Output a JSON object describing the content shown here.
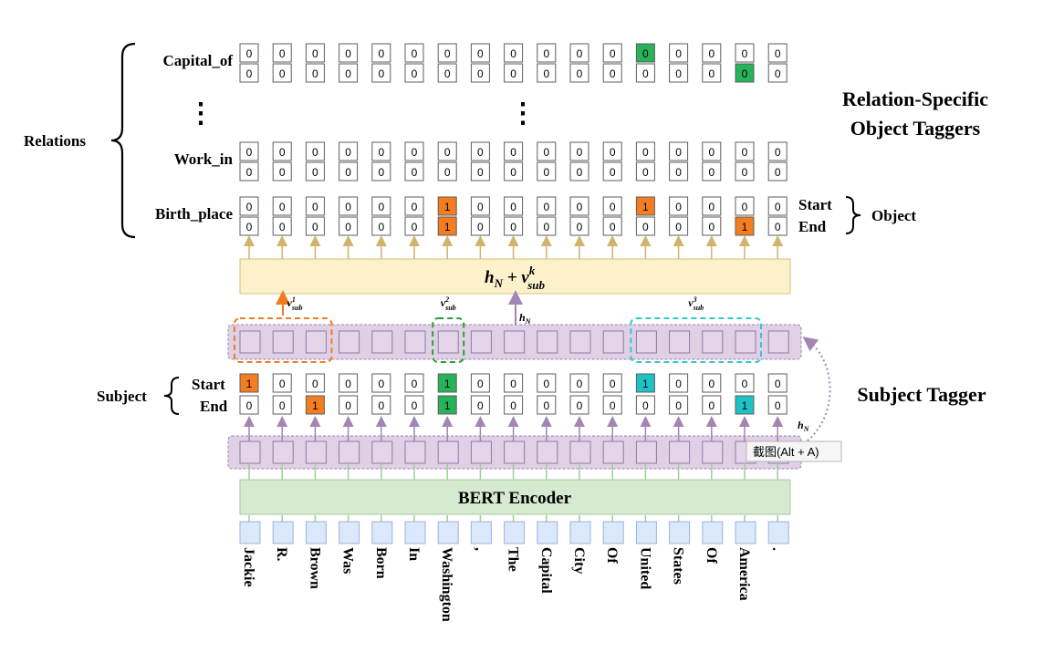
{
  "tokens": [
    "Jackie",
    "R.",
    "Brown",
    "Was",
    "Born",
    "In",
    "Washington",
    ",",
    "The",
    "Capital",
    "City",
    "Of",
    "United",
    "States",
    "Of",
    "America",
    "."
  ],
  "encoder_label": "BERT Encoder",
  "sum_label": {
    "main": "h",
    "sub_n": "N",
    "plus": " + v",
    "sup": "k",
    "sub": "sub"
  },
  "subject_tagger": {
    "title": "Subject Tagger",
    "group_label": "Subject",
    "start_label": "Start",
    "end_label": "End",
    "start": [
      "1",
      "0",
      "0",
      "0",
      "0",
      "0",
      "1",
      "0",
      "0",
      "0",
      "0",
      "0",
      "1",
      "0",
      "0",
      "0",
      "0"
    ],
    "end": [
      "0",
      "0",
      "1",
      "0",
      "0",
      "0",
      "1",
      "0",
      "0",
      "0",
      "0",
      "0",
      "0",
      "0",
      "0",
      "1",
      "0"
    ]
  },
  "subject_spans": [
    {
      "label_main": "v",
      "sup": "1",
      "sub": "sub",
      "color": "#f07b22",
      "from": 0,
      "to": 2
    },
    {
      "label_main": "v",
      "sup": "2",
      "sub": "sub",
      "color": "#2a9d3a",
      "from": 6,
      "to": 6
    },
    {
      "label_main": "v",
      "sup": "3",
      "sub": "sub",
      "color": "#35c7c9",
      "from": 12,
      "to": 15
    }
  ],
  "hn_label": {
    "main": "h",
    "sub": "N"
  },
  "object_taggers": {
    "title_line1": "Relation-Specific",
    "title_line2": "Object Taggers",
    "relations_label": "Relations",
    "start_label": "Start",
    "end_label": "End",
    "object_label": "Object",
    "ellipsis": "⋮",
    "relations": [
      {
        "name": "Capital_of",
        "start": [
          "0",
          "0",
          "0",
          "0",
          "0",
          "0",
          "0",
          "0",
          "0",
          "0",
          "0",
          "0",
          "0",
          "0",
          "0",
          "0",
          "0"
        ],
        "end": [
          "0",
          "0",
          "0",
          "0",
          "0",
          "0",
          "0",
          "0",
          "0",
          "0",
          "0",
          "0",
          "0",
          "0",
          "0",
          "0",
          "0"
        ],
        "start_hl": [
          12
        ],
        "end_hl": [
          15
        ]
      },
      {
        "name": "Work_in",
        "start": [
          "0",
          "0",
          "0",
          "0",
          "0",
          "0",
          "0",
          "0",
          "0",
          "0",
          "0",
          "0",
          "0",
          "0",
          "0",
          "0",
          "0"
        ],
        "end": [
          "0",
          "0",
          "0",
          "0",
          "0",
          "0",
          "0",
          "0",
          "0",
          "0",
          "0",
          "0",
          "0",
          "0",
          "0",
          "0",
          "0"
        ],
        "start_hl": [],
        "end_hl": []
      },
      {
        "name": "Birth_place",
        "start": [
          "0",
          "0",
          "0",
          "0",
          "0",
          "0",
          "1",
          "0",
          "0",
          "0",
          "0",
          "0",
          "1",
          "0",
          "0",
          "0",
          "0"
        ],
        "end": [
          "0",
          "0",
          "0",
          "0",
          "0",
          "0",
          "1",
          "0",
          "0",
          "0",
          "0",
          "0",
          "0",
          "0",
          "0",
          "1",
          "0"
        ],
        "start_hl": [
          6,
          12
        ],
        "end_hl": [
          6,
          15
        ]
      }
    ]
  },
  "tooltip_text": "截图(Alt + A)",
  "colors": {
    "orange": "#f47c21",
    "green": "#27b35a",
    "cyan": "#1cc2c6",
    "encoder_fill": "#d6e9d1",
    "sum_fill": "#fdf1cc",
    "hidden_band": "#e0d0e6",
    "arrow_tan": "#d1b36b",
    "arrow_purple": "#9f86b3"
  }
}
